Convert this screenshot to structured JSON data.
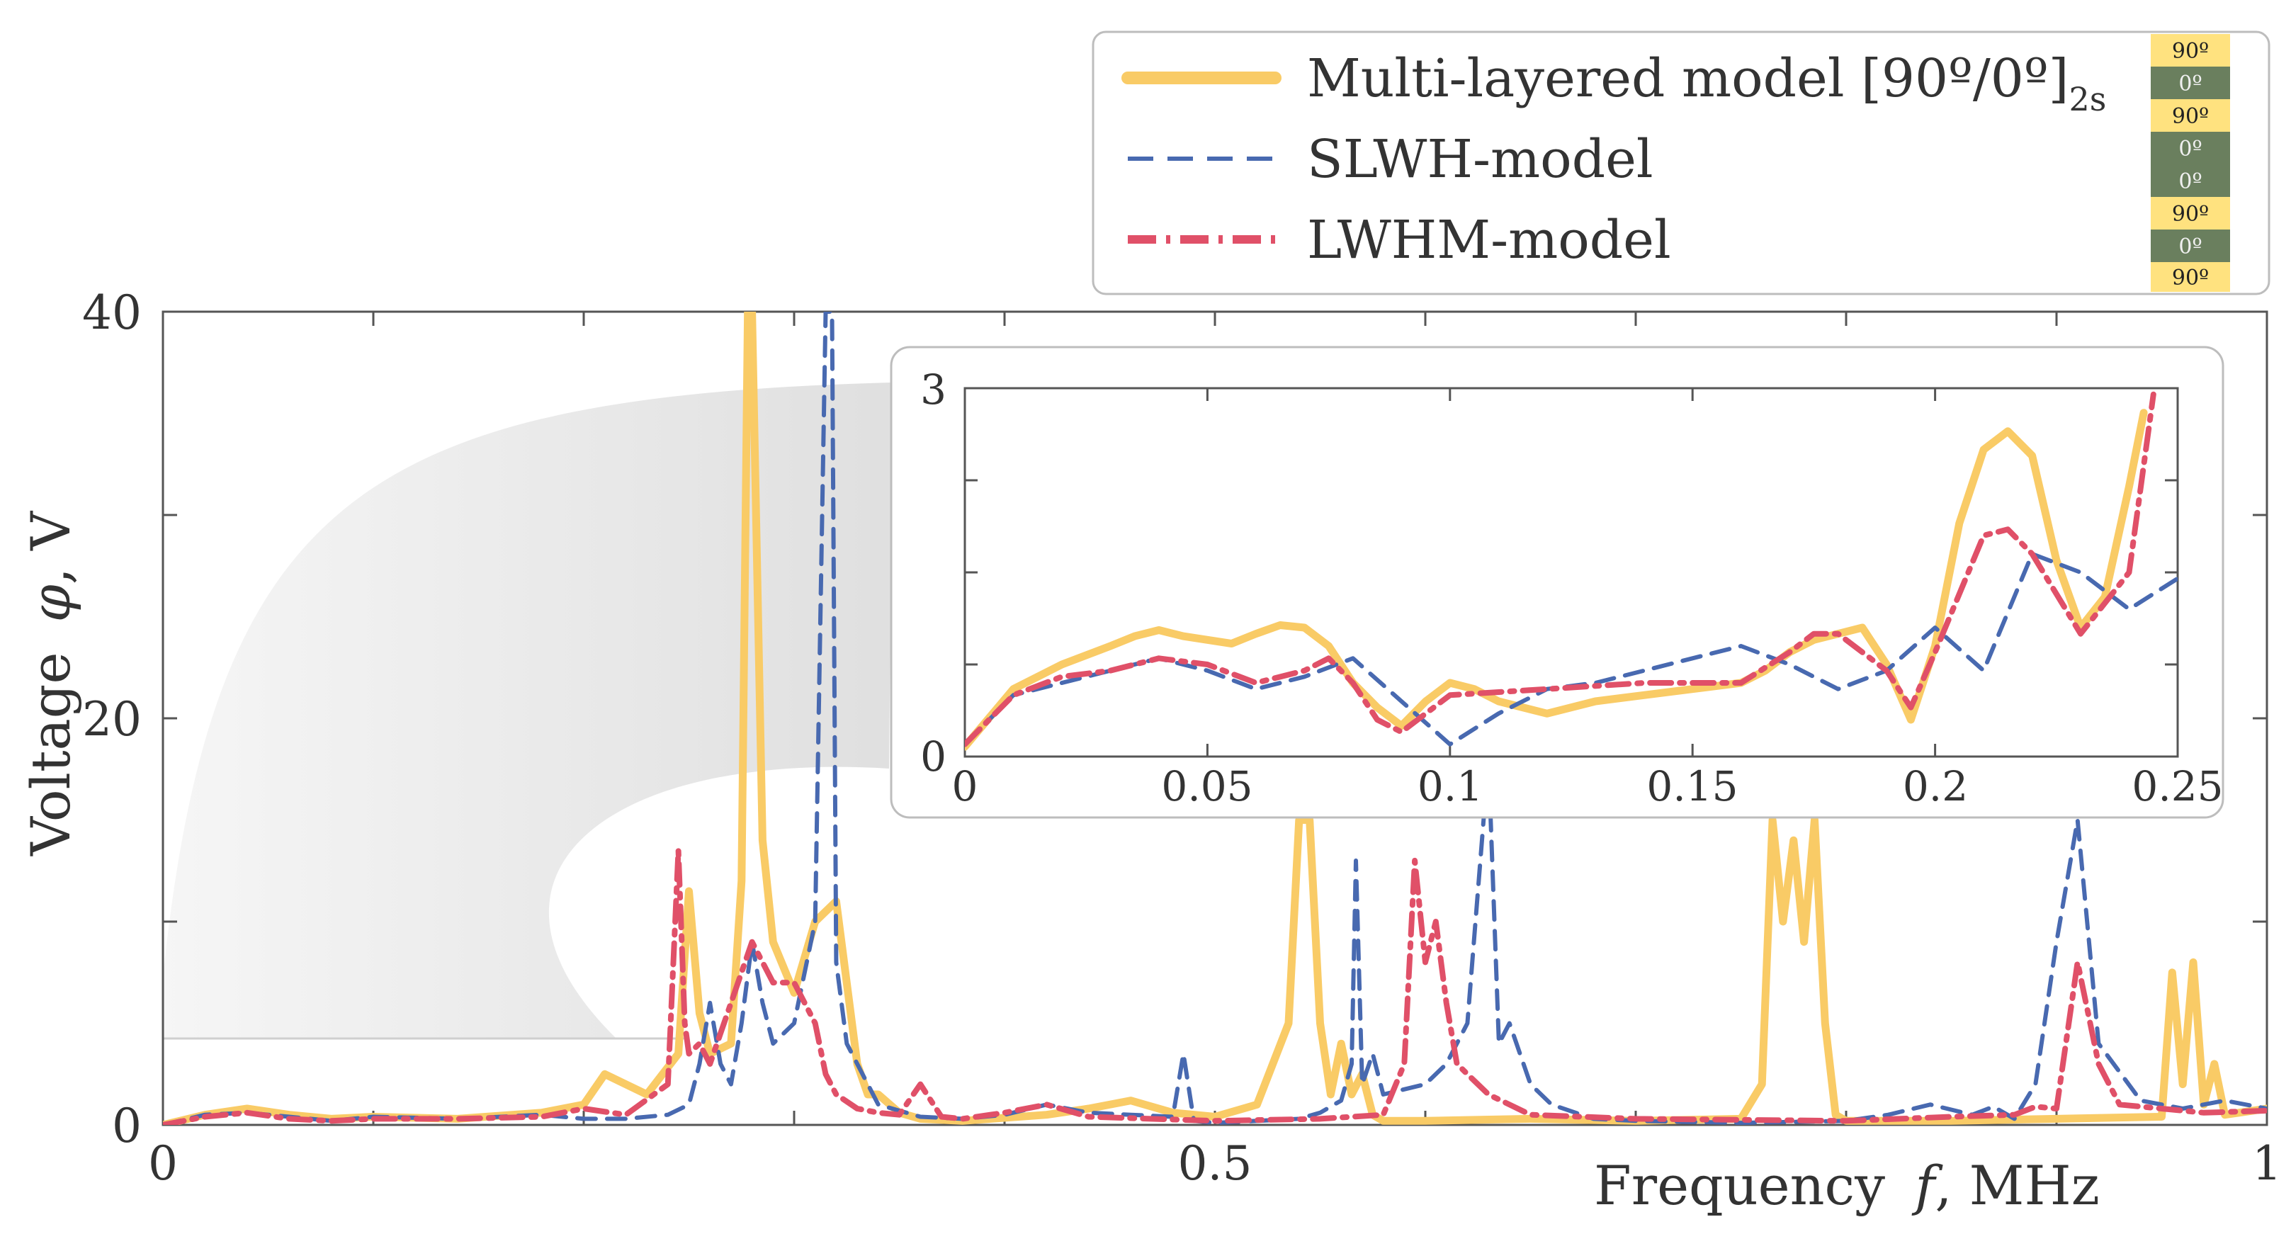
{
  "chart_data": [
    {
      "type": "line",
      "panel": "main",
      "xlabel": "Frequency  f, MHz",
      "xlabel_parts": {
        "prefix": "Frequency ",
        "var": "f",
        "suffix": ", MHz"
      },
      "ylabel": "Voltage  φ, V",
      "ylabel_parts": {
        "prefix": "Voltage ",
        "var": "φ",
        "suffix": ", V"
      },
      "xlim": [
        0,
        1
      ],
      "ylim": [
        0,
        40
      ],
      "xticks": [
        0,
        0.5,
        1
      ],
      "xtick_labels": [
        "0",
        "0.5",
        "1"
      ],
      "yticks": [
        0,
        20,
        40
      ],
      "ytick_labels": [
        "0",
        "20",
        "40"
      ],
      "series": [
        {
          "name": "Multi-layered model [90º/0º]2s",
          "style": "solid",
          "color": "#F9CB66",
          "x": [
            0,
            0.02,
            0.04,
            0.06,
            0.08,
            0.1,
            0.14,
            0.18,
            0.2,
            0.21,
            0.23,
            0.245,
            0.25,
            0.255,
            0.26,
            0.27,
            0.275,
            0.278,
            0.28,
            0.285,
            0.29,
            0.3,
            0.31,
            0.32,
            0.33,
            0.335,
            0.34,
            0.35,
            0.36,
            0.38,
            0.42,
            0.44,
            0.46,
            0.48,
            0.5,
            0.52,
            0.535,
            0.54,
            0.545,
            0.55,
            0.555,
            0.56,
            0.565,
            0.57,
            0.575,
            0.58,
            0.6,
            0.65,
            0.7,
            0.75,
            0.76,
            0.765,
            0.77,
            0.775,
            0.78,
            0.785,
            0.79,
            0.795,
            0.8,
            0.85,
            0.9,
            0.95,
            0.955,
            0.96,
            0.965,
            0.97,
            0.975,
            0.98,
            1.0
          ],
          "y": [
            0,
            0.5,
            0.8,
            0.5,
            0.3,
            0.4,
            0.3,
            0.6,
            1.0,
            2.5,
            1.5,
            3.5,
            11.5,
            5.5,
            3.5,
            4.0,
            12.0,
            40,
            40,
            14.0,
            9.0,
            6.5,
            10.0,
            11.0,
            3.0,
            1.5,
            1.5,
            0.6,
            0.3,
            0.2,
            0.5,
            0.8,
            1.2,
            0.6,
            0.4,
            1.0,
            5.0,
            15.0,
            15.0,
            5.0,
            1.5,
            4.0,
            1.5,
            2.5,
            0.5,
            0.2,
            0.2,
            0.3,
            0.2,
            0.3,
            2.0,
            15.0,
            10.0,
            14.0,
            9.0,
            15.0,
            5.0,
            0.5,
            0.2,
            0.2,
            0.3,
            0.4,
            7.5,
            2.0,
            8.0,
            1.0,
            3.0,
            0.5,
            0.8
          ]
        },
        {
          "name": "SLWH-model",
          "style": "dashed",
          "color": "#4869B0",
          "x": [
            0,
            0.02,
            0.04,
            0.06,
            0.08,
            0.1,
            0.14,
            0.18,
            0.2,
            0.22,
            0.24,
            0.25,
            0.255,
            0.26,
            0.265,
            0.27,
            0.275,
            0.28,
            0.285,
            0.29,
            0.3,
            0.31,
            0.315,
            0.318,
            0.32,
            0.325,
            0.33,
            0.34,
            0.36,
            0.38,
            0.4,
            0.42,
            0.44,
            0.46,
            0.48,
            0.485,
            0.49,
            0.5,
            0.52,
            0.54,
            0.55,
            0.56,
            0.565,
            0.567,
            0.57,
            0.575,
            0.58,
            0.6,
            0.61,
            0.62,
            0.63,
            0.635,
            0.64,
            0.65,
            0.66,
            0.68,
            0.7,
            0.75,
            0.8,
            0.82,
            0.84,
            0.86,
            0.87,
            0.88,
            0.89,
            0.9,
            0.91,
            0.92,
            0.94,
            0.96,
            0.98,
            1.0
          ],
          "y": [
            0,
            0.5,
            0.6,
            0.4,
            0.2,
            0.4,
            0.3,
            0.5,
            0.3,
            0.3,
            0.5,
            1.0,
            3.0,
            6.0,
            3.0,
            2.0,
            5.0,
            9.0,
            6.0,
            4.0,
            5.0,
            10.0,
            40,
            40,
            8.0,
            4.0,
            3.0,
            1.0,
            0.4,
            0.3,
            0.5,
            1.0,
            0.6,
            0.5,
            0.4,
            3.5,
            0.2,
            0.1,
            0.2,
            0.3,
            0.6,
            1.2,
            3.0,
            13.0,
            2.0,
            3.5,
            1.5,
            2.0,
            3.0,
            5.0,
            18.0,
            4.0,
            5.0,
            2.0,
            1.0,
            0.3,
            0.2,
            0.1,
            0.2,
            0.5,
            1.0,
            0.5,
            0.9,
            0.3,
            2.0,
            9.0,
            15.0,
            4.0,
            1.2,
            0.8,
            1.2,
            0.8
          ]
        },
        {
          "name": "LWHM-model",
          "style": "dashdot",
          "color": "#E05068",
          "x": [
            0,
            0.02,
            0.04,
            0.06,
            0.08,
            0.1,
            0.14,
            0.18,
            0.2,
            0.22,
            0.24,
            0.245,
            0.248,
            0.25,
            0.255,
            0.26,
            0.27,
            0.28,
            0.285,
            0.29,
            0.3,
            0.31,
            0.315,
            0.32,
            0.33,
            0.34,
            0.35,
            0.36,
            0.37,
            0.38,
            0.4,
            0.42,
            0.44,
            0.5,
            0.55,
            0.58,
            0.59,
            0.595,
            0.6,
            0.605,
            0.61,
            0.615,
            0.62,
            0.63,
            0.64,
            0.65,
            0.7,
            0.8,
            0.85,
            0.88,
            0.89,
            0.9,
            0.91,
            0.92,
            0.93,
            0.95,
            0.97,
            1.0
          ],
          "y": [
            0,
            0.4,
            0.6,
            0.3,
            0.2,
            0.3,
            0.3,
            0.4,
            0.8,
            0.5,
            2.0,
            13.5,
            5.0,
            3.5,
            4.0,
            3.0,
            6.0,
            9.0,
            8.0,
            7.0,
            7.0,
            5.0,
            2.5,
            1.5,
            0.8,
            0.6,
            0.5,
            2.0,
            0.4,
            0.3,
            0.6,
            1.0,
            0.4,
            0.2,
            0.3,
            0.5,
            3.0,
            13.0,
            8.0,
            10.0,
            6.0,
            3.0,
            2.5,
            1.5,
            1.0,
            0.5,
            0.3,
            0.2,
            0.4,
            0.5,
            0.9,
            0.8,
            8.0,
            3.0,
            1.0,
            0.8,
            0.6,
            0.7
          ]
        }
      ],
      "legend": {
        "placement": "top-right",
        "entries": [
          {
            "prefix": "Multi-layered model [90º/0º]",
            "subscript": "2s"
          },
          {
            "prefix": "SLWH-model",
            "subscript": ""
          },
          {
            "prefix": "LWHM-model",
            "subscript": ""
          }
        ]
      },
      "layup_stack": [
        "90º",
        "0º",
        "90º",
        "0º",
        "0º",
        "90º",
        "0º",
        "90º"
      ]
    },
    {
      "type": "line",
      "panel": "inset (zoom of 0–0.25 MHz)",
      "xlim": [
        0,
        0.25
      ],
      "ylim": [
        0,
        3
      ],
      "xticks": [
        0,
        0.05,
        0.1,
        0.15,
        0.2,
        0.25
      ],
      "xtick_labels": [
        "0",
        "0.05",
        "0.1",
        "0.15",
        "0.2",
        "0.25"
      ],
      "yticks": [
        0,
        3
      ],
      "ytick_labels": [
        "0",
        "3"
      ],
      "series": [
        {
          "name": "Multi-layered model [90º/0º]2s",
          "x": [
            0,
            0.01,
            0.02,
            0.03,
            0.035,
            0.04,
            0.045,
            0.05,
            0.055,
            0.06,
            0.065,
            0.07,
            0.075,
            0.08,
            0.085,
            0.09,
            0.095,
            0.1,
            0.105,
            0.11,
            0.12,
            0.13,
            0.14,
            0.15,
            0.16,
            0.165,
            0.17,
            0.175,
            0.18,
            0.185,
            0.19,
            0.195,
            0.2,
            0.205,
            0.21,
            0.215,
            0.22,
            0.225,
            0.23,
            0.235,
            0.24,
            0.243
          ],
          "y": [
            0.08,
            0.55,
            0.75,
            0.9,
            0.98,
            1.03,
            0.98,
            0.95,
            0.92,
            1.0,
            1.07,
            1.05,
            0.9,
            0.6,
            0.4,
            0.25,
            0.45,
            0.6,
            0.55,
            0.45,
            0.35,
            0.45,
            0.5,
            0.55,
            0.6,
            0.7,
            0.85,
            0.95,
            1.0,
            1.05,
            0.75,
            0.3,
            0.9,
            1.9,
            2.5,
            2.65,
            2.45,
            1.6,
            1.05,
            1.3,
            2.2,
            2.8
          ]
        },
        {
          "name": "SLWH-model",
          "x": [
            0,
            0.01,
            0.02,
            0.03,
            0.04,
            0.05,
            0.06,
            0.07,
            0.08,
            0.09,
            0.1,
            0.11,
            0.12,
            0.13,
            0.14,
            0.15,
            0.16,
            0.17,
            0.18,
            0.19,
            0.2,
            0.21,
            0.22,
            0.23,
            0.24,
            0.25
          ],
          "y": [
            0.1,
            0.5,
            0.6,
            0.7,
            0.8,
            0.7,
            0.55,
            0.65,
            0.8,
            0.45,
            0.1,
            0.35,
            0.55,
            0.6,
            0.7,
            0.8,
            0.9,
            0.75,
            0.55,
            0.7,
            1.05,
            0.7,
            1.65,
            1.5,
            1.2,
            1.45
          ]
        },
        {
          "name": "LWHM-model",
          "x": [
            0,
            0.01,
            0.02,
            0.03,
            0.04,
            0.05,
            0.06,
            0.07,
            0.075,
            0.08,
            0.085,
            0.09,
            0.1,
            0.12,
            0.14,
            0.16,
            0.17,
            0.175,
            0.18,
            0.19,
            0.195,
            0.2,
            0.21,
            0.215,
            0.22,
            0.23,
            0.24,
            0.245
          ],
          "y": [
            0.1,
            0.5,
            0.65,
            0.7,
            0.8,
            0.75,
            0.6,
            0.7,
            0.8,
            0.6,
            0.3,
            0.2,
            0.5,
            0.55,
            0.6,
            0.6,
            0.85,
            1.0,
            1.0,
            0.7,
            0.4,
            0.85,
            1.8,
            1.85,
            1.65,
            1.0,
            1.5,
            2.95
          ]
        }
      ]
    }
  ],
  "colors": {
    "multilayer": "#F9CB66",
    "slwh": "#4869B0",
    "lwhm": "#E05068",
    "layer_90": "#FFE27F",
    "layer_0": "#6A7F5E",
    "axis": "#555555"
  }
}
